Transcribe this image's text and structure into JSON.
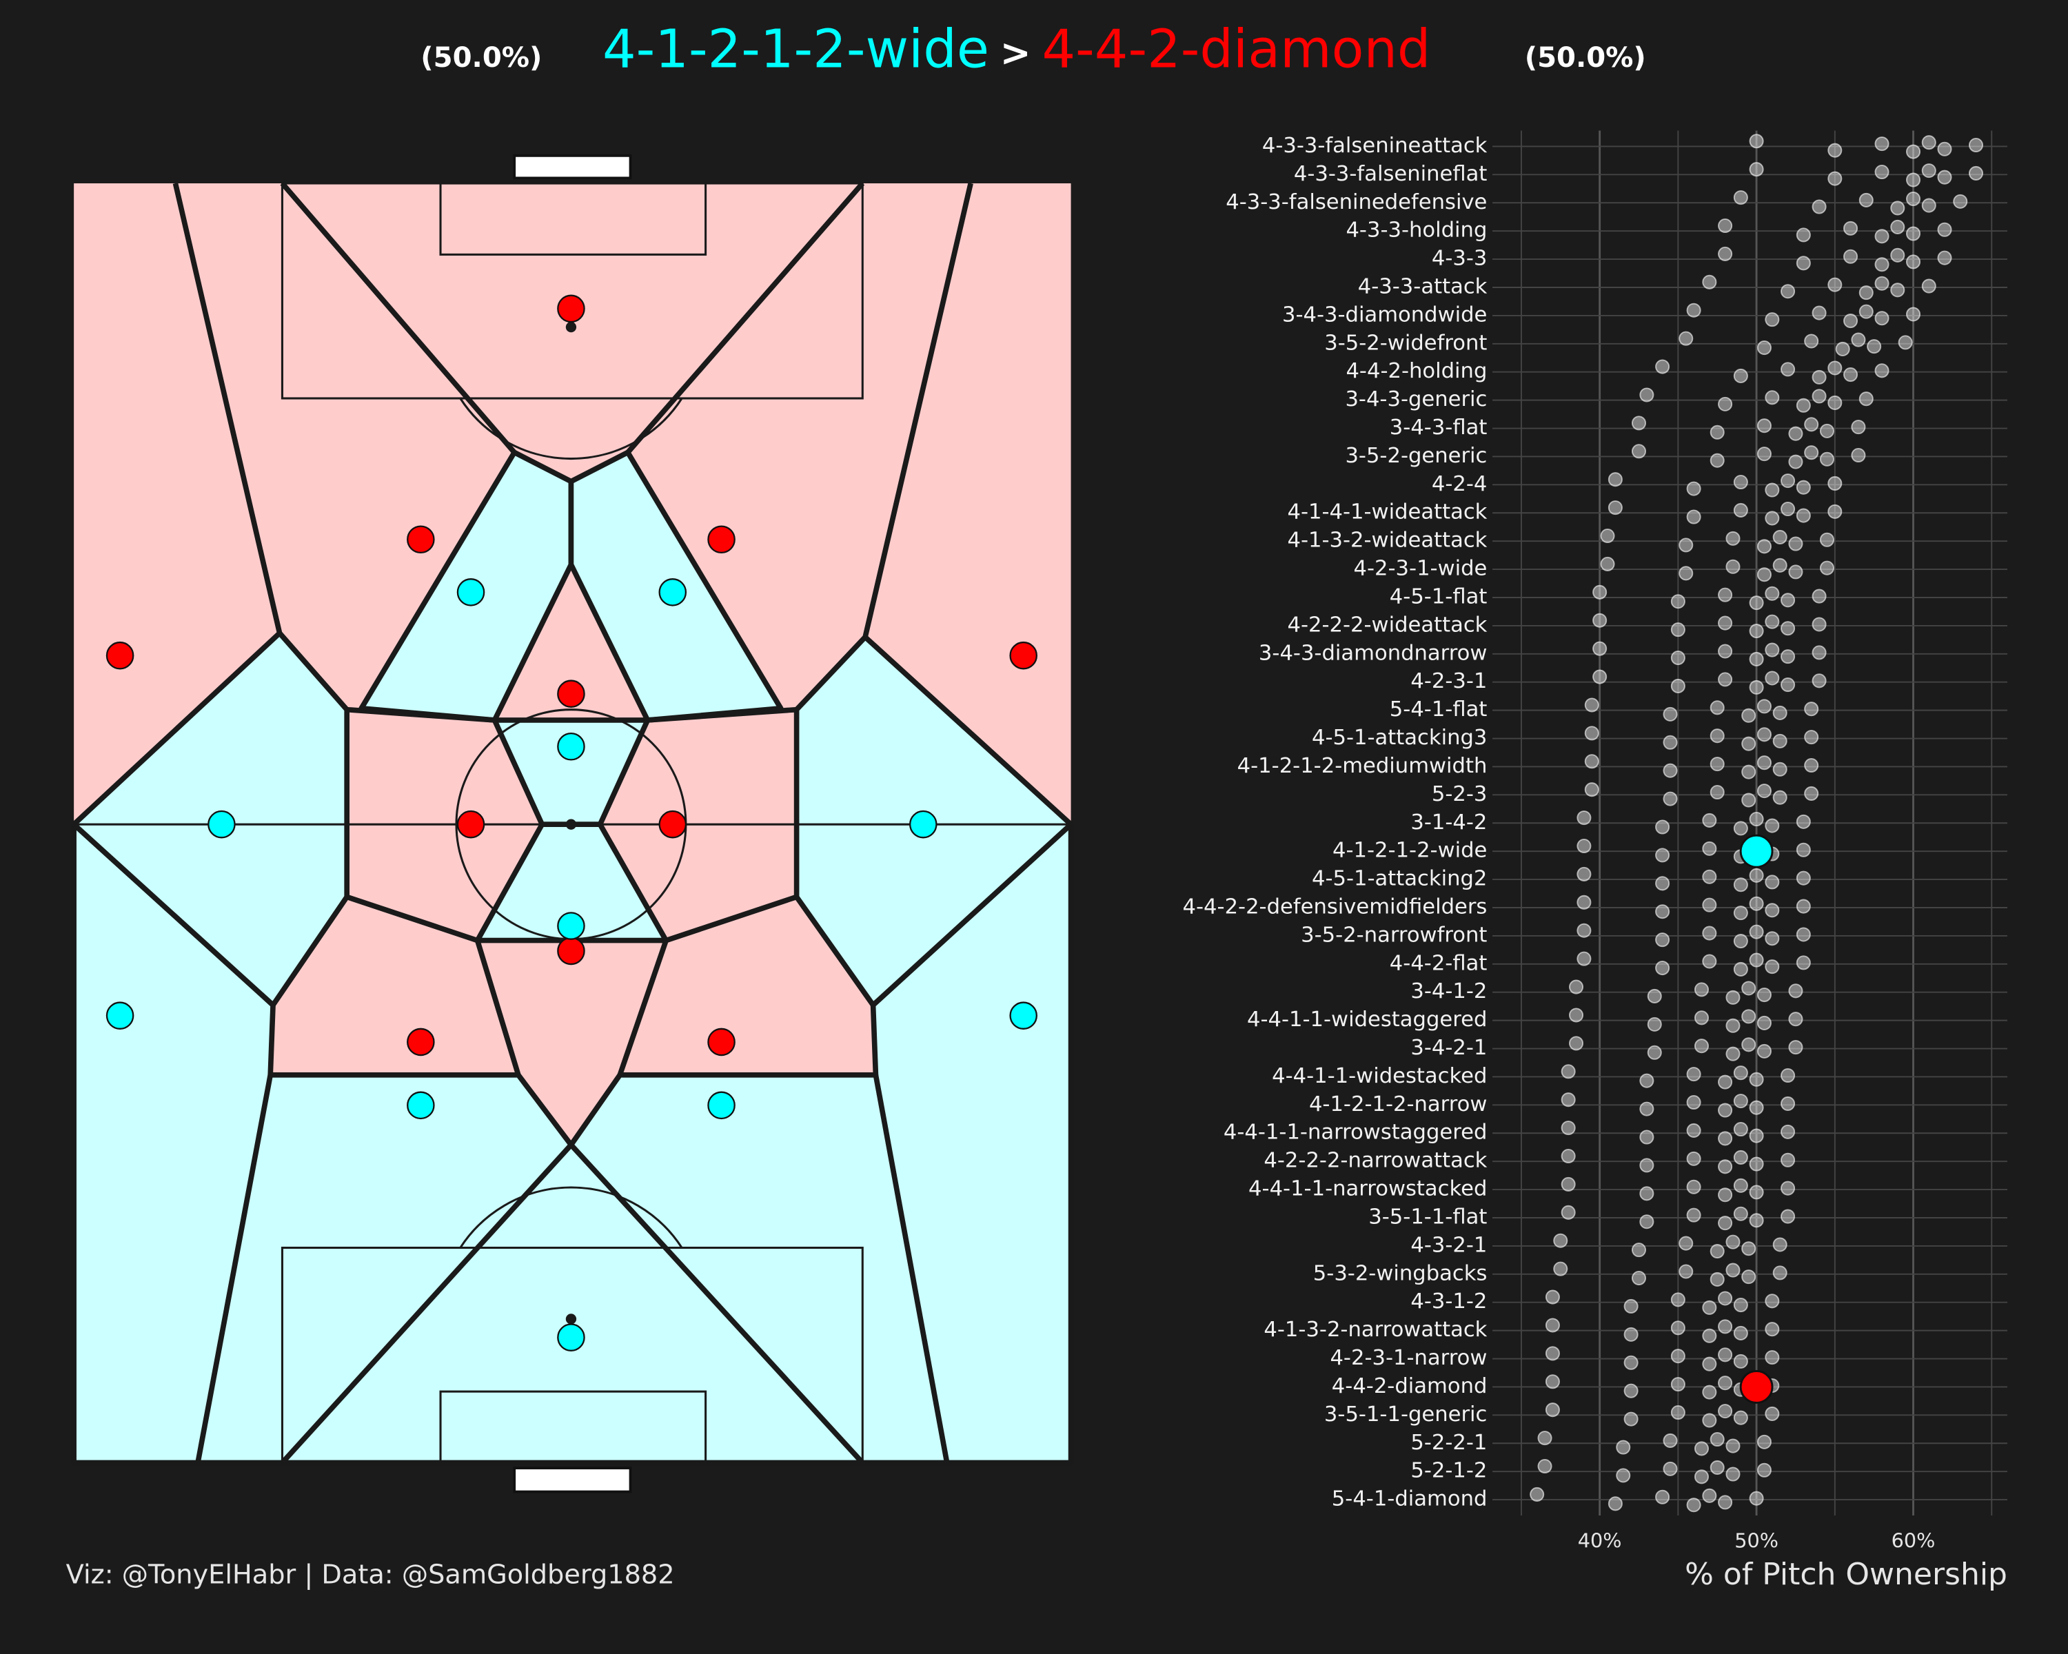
{
  "chart_data": {
    "type": "strip",
    "title_separator": ">",
    "highlights": [
      {
        "name": "4-1-2-1-2-wide",
        "value": 50.0,
        "label": "(50.0%)",
        "color": "#00ffff"
      },
      {
        "name": "4-4-2-diamond",
        "value": 50.0,
        "label": "(50.0%)",
        "color": "#ff0000"
      }
    ],
    "caption": "Viz: @TonyElHabr | Data: @SamGoldberg1882",
    "x_label": "% of Pitch Ownership",
    "xlim": [
      34,
      66
    ],
    "xticks": [
      {
        "value": 40,
        "label": "40%"
      },
      {
        "value": 50,
        "label": "50%"
      },
      {
        "value": 60,
        "label": "60%"
      }
    ],
    "x_minor_ticks": [
      35,
      45,
      55,
      65
    ],
    "grid": true,
    "point_color": "#ffffff",
    "categories": [
      "4-3-3-falsenineattack",
      "4-3-3-falsenineflat",
      "4-3-3-falseninedefensive",
      "4-3-3-holding",
      "4-3-3",
      "4-3-3-attack",
      "3-4-3-diamondwide",
      "3-5-2-widefront",
      "4-4-2-holding",
      "3-4-3-generic",
      "3-4-3-flat",
      "3-5-2-generic",
      "4-2-4",
      "4-1-4-1-wideattack",
      "4-1-3-2-wideattack",
      "4-2-3-1-wide",
      "4-5-1-flat",
      "4-2-2-2-wideattack",
      "3-4-3-diamondnarrow",
      "4-2-3-1",
      "5-4-1-flat",
      "4-5-1-attacking3",
      "4-1-2-1-2-mediumwidth",
      "5-2-3",
      "3-1-4-2",
      "4-1-2-1-2-wide",
      "4-5-1-attacking2",
      "4-4-2-2-defensivemidfielders",
      "3-5-2-narrowfront",
      "4-4-2-flat",
      "3-4-1-2",
      "4-4-1-1-widestaggered",
      "3-4-2-1",
      "4-4-1-1-widestacked",
      "4-1-2-1-2-narrow",
      "4-4-1-1-narrowstaggered",
      "4-2-2-2-narrowattack",
      "4-4-1-1-narrowstacked",
      "3-5-1-1-flat",
      "4-3-2-1",
      "5-3-2-wingbacks",
      "4-3-1-2",
      "4-1-3-2-narrowattack",
      "4-2-3-1-narrow",
      "4-4-2-diamond",
      "3-5-1-1-generic",
      "5-2-2-1",
      "5-2-1-2",
      "5-4-1-diamond"
    ],
    "points": [
      [
        50,
        55,
        58,
        60,
        61,
        62,
        64
      ],
      [
        50,
        55,
        58,
        60,
        61,
        62,
        64
      ],
      [
        49,
        54,
        57,
        59,
        60,
        61,
        63
      ],
      [
        48,
        53,
        56,
        58,
        59,
        60,
        62
      ],
      [
        48,
        53,
        56,
        58,
        59,
        60,
        62
      ],
      [
        47,
        52,
        55,
        57,
        58,
        59,
        61
      ],
      [
        46,
        51,
        54,
        56,
        57,
        58,
        60
      ],
      [
        45.5,
        50.5,
        53.5,
        55.5,
        56.5,
        57.5,
        59.5
      ],
      [
        44,
        49,
        52,
        54,
        55,
        56,
        58
      ],
      [
        43,
        48,
        51,
        53,
        54,
        55,
        57
      ],
      [
        42.5,
        47.5,
        50.5,
        52.5,
        53.5,
        54.5,
        56.5
      ],
      [
        42.5,
        47.5,
        50.5,
        52.5,
        53.5,
        54.5,
        56.5
      ],
      [
        41,
        46,
        49,
        51,
        52,
        53,
        55
      ],
      [
        41,
        46,
        49,
        51,
        52,
        53,
        55
      ],
      [
        40.5,
        45.5,
        48.5,
        50.5,
        51.5,
        52.5,
        54.5
      ],
      [
        40.5,
        45.5,
        48.5,
        50.5,
        51.5,
        52.5,
        54.5
      ],
      [
        40,
        45,
        48,
        50,
        51,
        52,
        54
      ],
      [
        40,
        45,
        48,
        50,
        51,
        52,
        54
      ],
      [
        40,
        45,
        48,
        50,
        51,
        52,
        54
      ],
      [
        40,
        45,
        48,
        50,
        51,
        52,
        54
      ],
      [
        39.5,
        44.5,
        47.5,
        49.5,
        50.5,
        51.5,
        53.5
      ],
      [
        39.5,
        44.5,
        47.5,
        49.5,
        50.5,
        51.5,
        53.5
      ],
      [
        39.5,
        44.5,
        47.5,
        49.5,
        50.5,
        51.5,
        53.5
      ],
      [
        39.5,
        44.5,
        47.5,
        49.5,
        50.5,
        51.5,
        53.5
      ],
      [
        39,
        44,
        47,
        49,
        50,
        51,
        53
      ],
      [
        39,
        44,
        47,
        49,
        50,
        51,
        53
      ],
      [
        39,
        44,
        47,
        49,
        50,
        51,
        53
      ],
      [
        39,
        44,
        47,
        49,
        50,
        51,
        53
      ],
      [
        39,
        44,
        47,
        49,
        50,
        51,
        53
      ],
      [
        39,
        44,
        47,
        49,
        50,
        51,
        53
      ],
      [
        38.5,
        43.5,
        46.5,
        48.5,
        49.5,
        50.5,
        52.5
      ],
      [
        38.5,
        43.5,
        46.5,
        48.5,
        49.5,
        50.5,
        52.5
      ],
      [
        38.5,
        43.5,
        46.5,
        48.5,
        49.5,
        50.5,
        52.5
      ],
      [
        38,
        43,
        46,
        48,
        49,
        50,
        52
      ],
      [
        38,
        43,
        46,
        48,
        49,
        50,
        52
      ],
      [
        38,
        43,
        46,
        48,
        49,
        50,
        52
      ],
      [
        38,
        43,
        46,
        48,
        49,
        50,
        52
      ],
      [
        38,
        43,
        46,
        48,
        49,
        50,
        52
      ],
      [
        38,
        43,
        46,
        48,
        49,
        50,
        52
      ],
      [
        37.5,
        42.5,
        45.5,
        47.5,
        48.5,
        49.5,
        51.5
      ],
      [
        37.5,
        42.5,
        45.5,
        47.5,
        48.5,
        49.5,
        51.5
      ],
      [
        37,
        42,
        45,
        47,
        48,
        49,
        51
      ],
      [
        37,
        42,
        45,
        47,
        48,
        49,
        51
      ],
      [
        37,
        42,
        45,
        47,
        48,
        49,
        51
      ],
      [
        37,
        42,
        45,
        47,
        48,
        49,
        51
      ],
      [
        37,
        42,
        45,
        47,
        48,
        49,
        51
      ],
      [
        36.5,
        41.5,
        44.5,
        46.5,
        47.5,
        48.5,
        50.5
      ],
      [
        36.5,
        41.5,
        44.5,
        46.5,
        47.5,
        48.5,
        50.5
      ],
      [
        36,
        41,
        44,
        46,
        47,
        48,
        50
      ]
    ]
  }
}
